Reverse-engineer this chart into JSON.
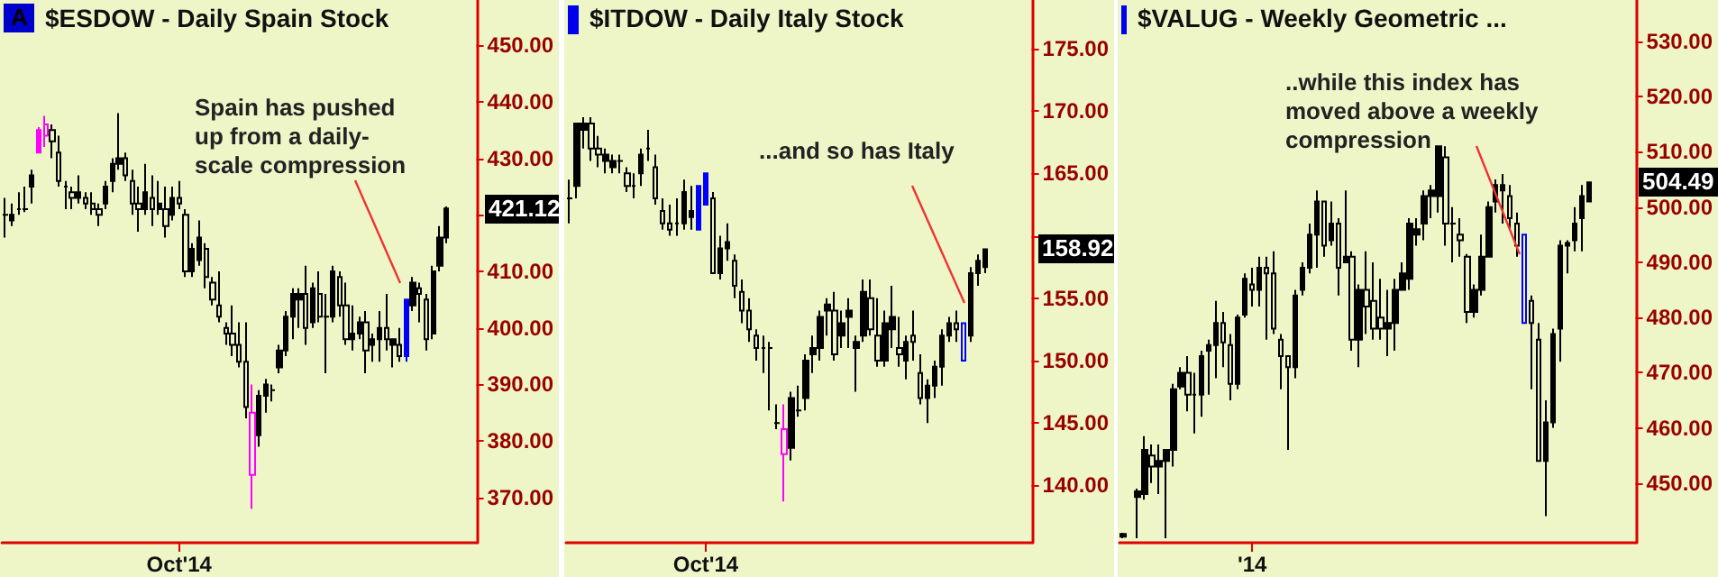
{
  "chart_data": [
    {
      "type": "candlestick",
      "title": "$ESDOW - Daily Spain Stock",
      "categories": [
        null,
        null,
        null,
        null,
        null,
        null,
        null,
        null,
        null,
        null,
        null,
        null,
        null,
        null,
        null,
        null,
        null,
        null,
        null,
        null,
        null,
        null,
        null,
        null,
        null,
        null,
        "Oct'14",
        null,
        null,
        null,
        null,
        null,
        null,
        null,
        null,
        null,
        null,
        null,
        null,
        null,
        null,
        null,
        null,
        null,
        null,
        null,
        null,
        null,
        null,
        null,
        null,
        null,
        null,
        null,
        null,
        null,
        null,
        null,
        null,
        null,
        null,
        null,
        null,
        null,
        null,
        null,
        null,
        null,
        null,
        null,
        null
      ],
      "ohlc": [
        [
          420,
          423,
          416,
          420
        ],
        [
          419,
          422,
          418,
          420
        ],
        [
          421,
          424,
          420,
          421
        ],
        [
          421,
          425,
          420.5,
          421
        ],
        [
          425,
          428,
          422,
          427
        ],
        [
          431,
          435.5,
          431,
          435
        ],
        [
          436,
          437.5,
          432,
          434
        ],
        [
          435,
          436,
          430,
          433
        ],
        [
          431,
          434,
          425,
          426
        ],
        [
          425,
          426,
          421,
          425
        ],
        [
          424,
          425,
          421,
          423
        ],
        [
          423,
          427,
          422,
          424
        ],
        [
          423,
          424,
          421,
          422
        ],
        [
          422,
          424,
          420,
          421
        ],
        [
          421,
          422,
          418,
          420
        ],
        [
          422,
          426,
          421,
          425
        ],
        [
          426,
          430,
          424,
          429
        ],
        [
          429,
          438,
          428,
          430
        ],
        [
          430,
          431,
          426,
          427
        ],
        [
          426,
          428,
          420,
          422
        ],
        [
          422,
          425,
          417,
          421
        ],
        [
          421,
          429,
          420,
          424
        ],
        [
          423,
          427,
          418,
          421
        ],
        [
          421,
          426,
          420,
          422
        ],
        [
          421,
          425,
          416,
          418
        ],
        [
          420,
          425,
          419,
          423
        ],
        [
          423,
          426,
          421,
          422
        ],
        [
          420,
          421,
          409,
          410
        ],
        [
          410,
          415,
          409,
          414
        ],
        [
          412,
          419,
          411,
          416
        ],
        [
          414,
          415,
          407,
          409
        ],
        [
          408,
          409,
          404,
          405
        ],
        [
          404,
          410,
          401,
          402
        ],
        [
          400,
          401,
          397,
          399
        ],
        [
          399,
          404,
          395,
          397
        ],
        [
          397,
          401,
          393,
          394
        ],
        [
          394,
          401,
          384,
          386
        ],
        [
          385,
          390,
          368,
          374
        ],
        [
          381,
          389,
          379,
          388
        ],
        [
          388,
          391,
          385,
          390
        ],
        [
          389,
          390,
          387,
          389
        ],
        [
          393,
          397,
          392,
          396
        ],
        [
          396,
          403,
          395,
          402
        ],
        [
          402,
          407,
          398,
          406
        ],
        [
          405,
          407,
          400,
          406
        ],
        [
          406,
          411,
          397,
          400
        ],
        [
          401,
          408,
          400,
          407
        ],
        [
          406,
          410,
          401,
          402
        ],
        [
          402,
          406,
          392,
          402
        ],
        [
          402,
          411,
          401,
          410
        ],
        [
          409,
          410,
          402,
          404
        ],
        [
          404,
          408,
          397,
          398
        ],
        [
          398,
          404,
          396,
          399
        ],
        [
          399,
          402,
          398,
          401
        ],
        [
          401,
          403,
          392,
          396
        ],
        [
          397,
          399,
          394,
          398
        ],
        [
          398,
          403,
          394,
          400
        ],
        [
          400,
          406,
          396,
          398
        ],
        [
          397,
          398,
          393,
          398
        ],
        [
          397,
          400,
          394,
          395
        ],
        [
          395,
          405,
          394,
          405
        ],
        [
          404,
          409,
          403,
          408
        ],
        [
          407,
          408,
          401,
          406
        ],
        [
          405,
          406,
          396,
          398
        ],
        [
          399,
          411,
          398,
          410
        ],
        [
          411,
          418,
          410,
          416
        ],
        [
          416,
          421.5,
          415,
          421.12
        ],
        null,
        null,
        null,
        null
      ],
      "colors": [
        "#000000",
        "#000000",
        "#000000",
        "#000000",
        "#000000",
        "#ff00ff",
        "#ff00ff",
        "#000000",
        "#000000",
        "#000000",
        "#000000",
        "#000000",
        "#000000",
        "#000000",
        "#000000",
        "#000000",
        "#000000",
        "#000000",
        "#000000",
        "#000000",
        "#000000",
        "#000000",
        "#000000",
        "#000000",
        "#000000",
        "#000000",
        "#000000",
        "#000000",
        "#000000",
        "#000000",
        "#000000",
        "#000000",
        "#000000",
        "#000000",
        "#000000",
        "#000000",
        "#000000",
        "#ff00ff",
        "#000000",
        "#000000",
        "#000000",
        "#000000",
        "#000000",
        "#000000",
        "#000000",
        "#000000",
        "#000000",
        "#000000",
        "#000000",
        "#000000",
        "#000000",
        "#000000",
        "#000000",
        "#000000",
        "#000000",
        "#000000",
        "#000000",
        "#000000",
        "#000000",
        "#000000",
        "#0000ff",
        "#000000",
        "#000000",
        "#000000",
        "#000000",
        "#000000",
        "#000000",
        null,
        null,
        null,
        null
      ],
      "ylim": [
        362,
        458
      ],
      "yticks": [
        {
          "value": 370,
          "label": "370.00"
        },
        {
          "value": 380,
          "label": "380.00"
        },
        {
          "value": 390,
          "label": "390.00"
        },
        {
          "value": 400,
          "label": "400.00"
        },
        {
          "value": 410,
          "label": "410.00"
        },
        {
          "value": 420,
          "label": null
        },
        {
          "value": 430,
          "label": "430.00"
        },
        {
          "value": 440,
          "label": "440.00"
        },
        {
          "value": 450,
          "label": "450.00"
        }
      ],
      "annotations": [
        "A",
        "Spain has pushed up from a daily-scale compression",
        "421.12"
      ]
    },
    {
      "type": "candlestick",
      "title": "$ITDOW - Daily Italy Stock",
      "categories": [
        null,
        null,
        null,
        null,
        null,
        null,
        null,
        null,
        null,
        null,
        null,
        null,
        null,
        null,
        null,
        null,
        null,
        null,
        null,
        "Oct'14",
        null,
        null,
        null,
        null,
        null,
        null,
        null,
        null,
        null,
        null,
        null,
        null,
        null,
        null,
        null,
        null,
        null,
        null,
        null,
        null,
        null,
        null,
        null,
        null,
        null,
        null,
        null,
        null,
        null,
        null,
        null,
        null,
        null,
        null,
        null,
        null,
        null,
        null,
        null,
        null,
        null,
        null,
        null,
        null,
        null
      ],
      "ohlc": [
        [
          163,
          164.5,
          161,
          163
        ],
        [
          164,
          169,
          163,
          169
        ],
        [
          168.5,
          169.5,
          167,
          169
        ],
        [
          169,
          169.5,
          166,
          167
        ],
        [
          167,
          168,
          165.5,
          166.5
        ],
        [
          166,
          167,
          165,
          166.5
        ],
        [
          165.5,
          166.5,
          165,
          166
        ],
        [
          166,
          166.5,
          165,
          166
        ],
        [
          165,
          165.5,
          163.5,
          164
        ],
        [
          164,
          165,
          163,
          164
        ],
        [
          165,
          167,
          164,
          166.5
        ],
        [
          167,
          168.5,
          166,
          167
        ],
        [
          165.5,
          166.5,
          162.5,
          163
        ],
        [
          162,
          163,
          160.5,
          161
        ],
        [
          161,
          162.5,
          160,
          160.5
        ],
        [
          161,
          163,
          160,
          161
        ],
        [
          161,
          164.5,
          160.5,
          163.5
        ],
        [
          161.5,
          164,
          160.5,
          162
        ],
        [
          160.5,
          164,
          160.5,
          164
        ],
        [
          162.5,
          165,
          162.5,
          165
        ],
        [
          163,
          163.5,
          157,
          157
        ],
        [
          157,
          160,
          156.5,
          159
        ],
        [
          159,
          161,
          158,
          159.5
        ],
        [
          158,
          158.5,
          155,
          156
        ],
        [
          155.5,
          156.5,
          153,
          154
        ],
        [
          154,
          155,
          151.5,
          152.5
        ],
        [
          152,
          152.5,
          150,
          151
        ],
        [
          151,
          152,
          149,
          151
        ],
        [
          151,
          151.5,
          146,
          151
        ],
        [
          145,
          146.5,
          144.5,
          145
        ],
        [
          144.5,
          146.5,
          138.7,
          142.5
        ],
        [
          143,
          147.5,
          142,
          147
        ],
        [
          146,
          148,
          145.5,
          146
        ],
        [
          147,
          150.5,
          146,
          150
        ],
        [
          150.5,
          152,
          149,
          151
        ],
        [
          151,
          154,
          150,
          153.5
        ],
        [
          154,
          155,
          152,
          154.5
        ],
        [
          154,
          155.5,
          150,
          150.5
        ],
        [
          152,
          154,
          151,
          153
        ],
        [
          153.5,
          155,
          151,
          154
        ],
        [
          151,
          152,
          147.5,
          151.5
        ],
        [
          152,
          156.5,
          151.5,
          155.5
        ],
        [
          155,
          156.5,
          152,
          152.5
        ],
        [
          152,
          155,
          149.5,
          150
        ],
        [
          150,
          154,
          149.5,
          153
        ],
        [
          152.5,
          156,
          151,
          153.5
        ],
        [
          151,
          153.5,
          149.5,
          150.5
        ],
        [
          150,
          152,
          148.5,
          151.5
        ],
        [
          152,
          154,
          150,
          151.5
        ],
        [
          149,
          150.5,
          146.5,
          147
        ],
        [
          147,
          148.5,
          145,
          148
        ],
        [
          148,
          150,
          147,
          149.5
        ],
        [
          149.5,
          152.5,
          148,
          152
        ],
        [
          152,
          153.5,
          151.5,
          153
        ],
        [
          153,
          154,
          151.5,
          152.5
        ],
        [
          153,
          153,
          150,
          150
        ],
        [
          152,
          157.5,
          151.5,
          157
        ],
        [
          157,
          158.5,
          156,
          158
        ],
        [
          157.5,
          159,
          157,
          158.92
        ],
        null,
        null,
        null,
        null,
        null,
        null
      ],
      "colors": [
        "#000000",
        "#000000",
        "#000000",
        "#000000",
        "#000000",
        "#000000",
        "#000000",
        "#000000",
        "#000000",
        "#000000",
        "#000000",
        "#000000",
        "#000000",
        "#000000",
        "#000000",
        "#000000",
        "#000000",
        "#000000",
        "#0000ff",
        "#0000ff",
        "#000000",
        "#000000",
        "#000000",
        "#000000",
        "#000000",
        "#000000",
        "#000000",
        "#000000",
        "#000000",
        "#000000",
        "#ff00ff",
        "#000000",
        "#000000",
        "#000000",
        "#000000",
        "#000000",
        "#000000",
        "#000000",
        "#000000",
        "#000000",
        "#000000",
        "#000000",
        "#000000",
        "#000000",
        "#000000",
        "#000000",
        "#000000",
        "#000000",
        "#000000",
        "#000000",
        "#000000",
        "#000000",
        "#000000",
        "#000000",
        "#000000",
        "#0000ff",
        "#000000",
        "#000000",
        "#000000",
        null,
        null,
        null,
        null,
        null,
        null
      ],
      "ylim": [
        135.4,
        178.9
      ],
      "yticks": [
        {
          "value": 140,
          "label": "140.00"
        },
        {
          "value": 145,
          "label": "145.00"
        },
        {
          "value": 150,
          "label": "150.00"
        },
        {
          "value": 155,
          "label": "155.00"
        },
        {
          "value": 160,
          "label": null
        },
        {
          "value": 165,
          "label": "165.00"
        },
        {
          "value": 170,
          "label": "170.00"
        },
        {
          "value": 175,
          "label": "175.00"
        }
      ],
      "annotations": [
        "...and so has Italy",
        "158.92"
      ]
    },
    {
      "type": "candlestick",
      "title": "$VALUG - Weekly Geometric ...",
      "categories": [
        null,
        null,
        null,
        null,
        null,
        null,
        null,
        null,
        null,
        null,
        null,
        null,
        null,
        null,
        null,
        null,
        null,
        null,
        "'14",
        null,
        null,
        null,
        null,
        null,
        null,
        null,
        null,
        null,
        null,
        null,
        null,
        null,
        null,
        null,
        null,
        null,
        null,
        null,
        null,
        null,
        null,
        null,
        null,
        null,
        null,
        null,
        null,
        null,
        null,
        null,
        null,
        null,
        null,
        null,
        null,
        null,
        null,
        null,
        null,
        null,
        null,
        null,
        null,
        null,
        null,
        null,
        null,
        null,
        null,
        null,
        null,
        null
      ],
      "ohlc": [
        [
          440.3,
          441,
          440,
          440.8
        ],
        null,
        [
          447.5,
          449,
          440,
          448.5
        ],
        [
          448,
          458.5,
          447,
          456
        ],
        [
          455,
          457,
          450,
          453
        ],
        [
          453,
          457,
          448,
          454
        ],
        [
          454,
          456,
          440,
          456
        ],
        [
          456,
          468,
          453,
          467
        ],
        [
          467.5,
          471,
          467,
          470
        ],
        [
          470,
          473,
          463,
          466
        ],
        [
          466,
          470,
          459,
          466
        ],
        [
          466,
          474,
          462,
          473
        ],
        [
          474,
          476,
          466,
          475
        ],
        [
          475,
          483,
          469,
          479
        ],
        [
          479,
          481,
          471,
          475.5
        ],
        [
          475,
          477,
          465,
          468
        ],
        [
          468,
          480.5,
          467,
          480
        ],
        [
          480.5,
          488,
          480,
          487
        ],
        [
          486,
          489,
          482,
          485
        ],
        [
          485,
          491,
          482,
          489
        ],
        [
          489,
          491,
          476,
          488
        ],
        [
          488,
          492,
          477,
          478
        ],
        [
          476,
          477,
          467,
          473
        ],
        [
          473,
          473,
          456,
          471
        ],
        [
          471,
          485,
          469,
          484
        ],
        [
          485,
          490,
          484,
          489
        ],
        [
          489,
          497,
          488,
          495
        ],
        [
          495,
          503,
          489,
          501
        ],
        [
          501,
          501,
          491,
          493
        ],
        [
          494,
          501,
          493,
          497
        ],
        [
          497,
          498,
          484,
          489
        ],
        [
          490,
          503,
          490,
          491
        ],
        [
          491,
          492,
          474,
          476
        ],
        [
          476,
          486,
          471,
          485
        ],
        [
          485,
          492,
          477,
          482
        ],
        [
          483,
          490,
          476,
          478
        ],
        [
          480,
          487,
          476,
          478
        ],
        [
          478,
          485,
          473,
          479
        ],
        [
          479,
          487,
          474,
          485
        ],
        [
          485,
          490,
          485,
          488
        ],
        [
          487,
          498,
          485,
          497
        ],
        [
          495,
          498,
          493,
          496
        ],
        [
          497,
          503,
          494,
          502
        ],
        [
          502,
          504,
          498,
          503
        ],
        [
          502,
          511,
          499,
          511
        ],
        [
          509,
          511,
          493,
          497
        ],
        [
          497,
          500,
          490,
          497
        ],
        [
          495,
          498,
          491,
          494
        ],
        [
          491,
          491.5,
          479,
          481
        ],
        [
          481,
          486,
          480,
          485
        ],
        [
          485,
          495,
          484,
          491
        ],
        [
          491,
          501,
          491,
          500
        ],
        [
          501,
          505,
          499,
          504
        ],
        [
          503,
          506,
          497,
          504
        ],
        [
          502,
          504,
          496,
          498
        ],
        [
          497,
          499,
          491,
          493
        ],
        [
          495,
          495,
          479,
          479
        ],
        [
          483,
          484,
          467,
          479
        ],
        [
          476,
          479,
          454,
          454
        ],
        [
          454,
          465,
          444,
          461
        ],
        [
          461,
          478,
          460,
          477
        ],
        [
          478,
          494,
          472,
          493
        ],
        [
          493,
          494,
          488,
          493.5
        ],
        [
          494,
          500,
          492,
          497
        ],
        [
          498,
          504,
          492,
          502
        ],
        [
          501,
          504.5,
          501,
          504.49
        ],
        null,
        null,
        null,
        null,
        null,
        null
      ],
      "colors": [
        "#000000",
        null,
        "#000000",
        "#000000",
        "#000000",
        "#000000",
        "#000000",
        "#000000",
        "#000000",
        "#000000",
        "#000000",
        "#000000",
        "#000000",
        "#000000",
        "#000000",
        "#000000",
        "#000000",
        "#000000",
        "#000000",
        "#000000",
        "#000000",
        "#000000",
        "#000000",
        "#000000",
        "#000000",
        "#000000",
        "#000000",
        "#000000",
        "#000000",
        "#000000",
        "#000000",
        "#000000",
        "#000000",
        "#000000",
        "#000000",
        "#000000",
        "#000000",
        "#000000",
        "#000000",
        "#000000",
        "#000000",
        "#000000",
        "#000000",
        "#000000",
        "#000000",
        "#000000",
        "#000000",
        "#000000",
        "#000000",
        "#000000",
        "#000000",
        "#000000",
        "#000000",
        "#000000",
        "#000000",
        "#000000",
        "#0000ff",
        "#000000",
        "#000000",
        "#000000",
        "#000000",
        "#000000",
        "#000000",
        "#000000",
        "#000000",
        "#000000",
        null,
        null,
        null,
        null,
        null,
        null
      ],
      "ylim": [
        439.2,
        537.5
      ],
      "yticks": [
        {
          "value": 450,
          "label": "450.00"
        },
        {
          "value": 460,
          "label": "460.00"
        },
        {
          "value": 470,
          "label": "470.00"
        },
        {
          "value": 480,
          "label": "480.00"
        },
        {
          "value": 490,
          "label": "490.00"
        },
        {
          "value": 500,
          "label": "500.00"
        },
        {
          "value": 510,
          "label": "510.00"
        },
        {
          "value": 520,
          "label": "520.00"
        },
        {
          "value": 530,
          "label": "530.00"
        }
      ],
      "annotations": [
        "..while this index has moved above a weekly compression",
        "504.49"
      ]
    }
  ]
}
